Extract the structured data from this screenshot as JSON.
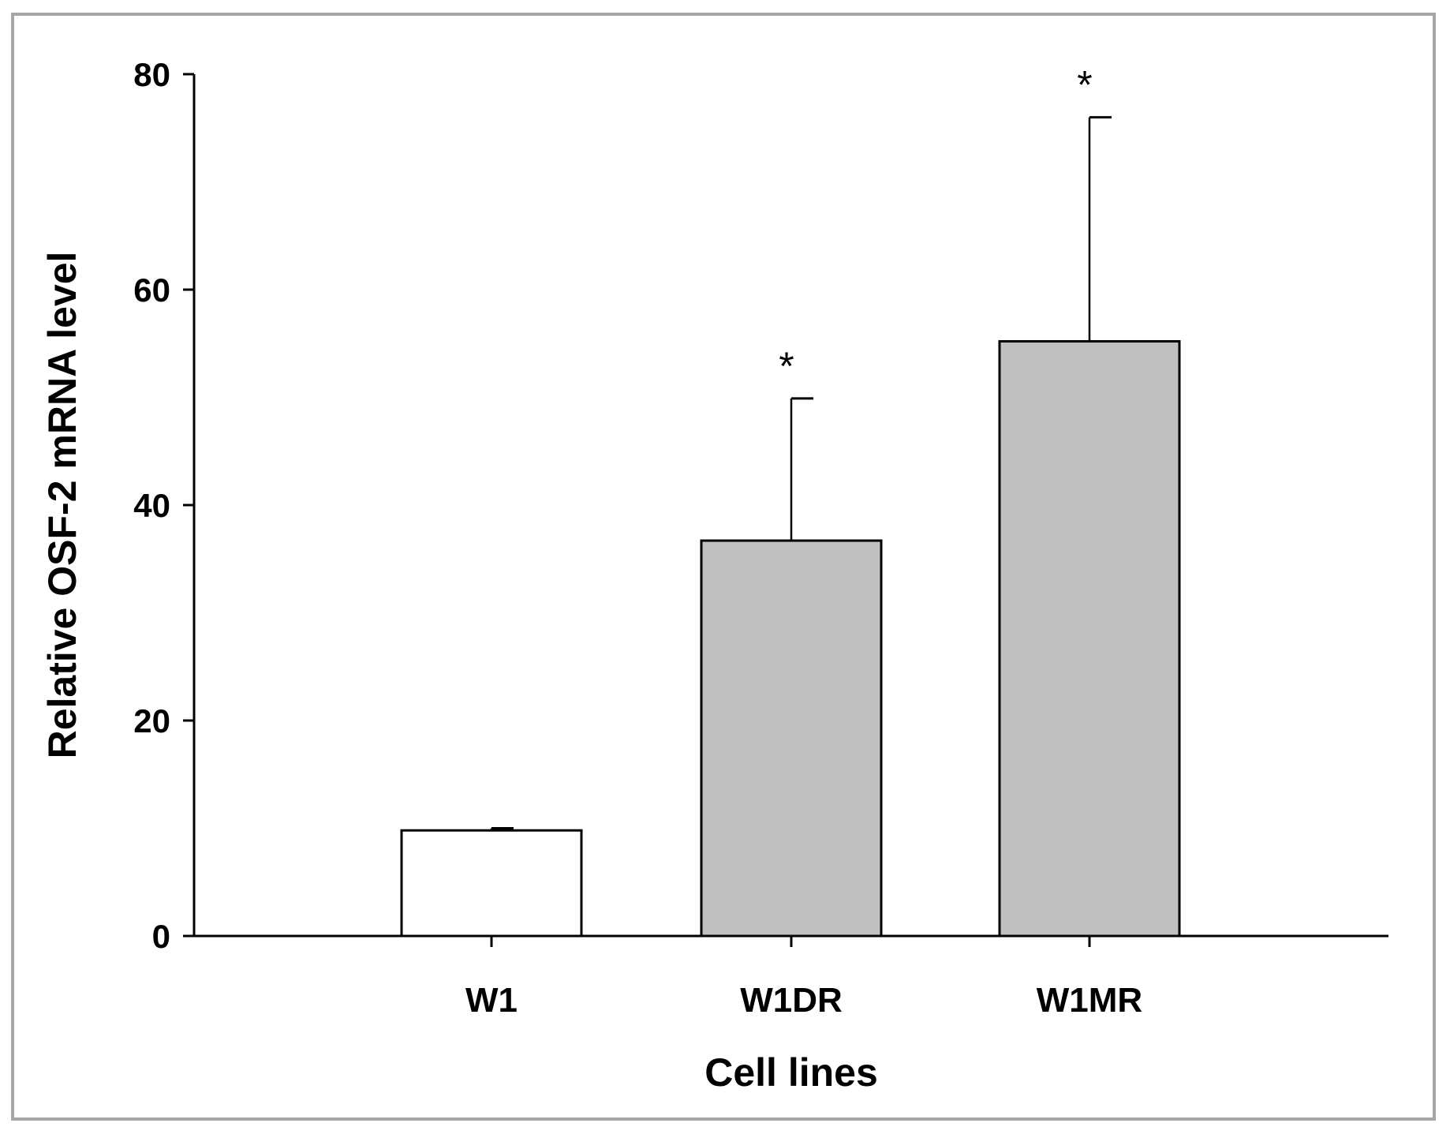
{
  "chart_data": {
    "type": "bar",
    "title": "",
    "xlabel": "Cell lines",
    "ylabel": "Relative OSF-2 mRNA level",
    "ylim": [
      0,
      80
    ],
    "yticks": [
      0,
      20,
      40,
      60,
      80
    ],
    "categories": [
      "W1",
      "W1DR",
      "W1MR"
    ],
    "values": [
      9.8,
      36.7,
      55.2
    ],
    "errors": [
      0.2,
      13.2,
      20.8
    ],
    "colors": [
      "#ffffff",
      "#c0c0c0",
      "#c0c0c0"
    ],
    "annotations": [
      "",
      "*",
      "*"
    ],
    "grid": false
  },
  "colors": {
    "frame_border": "#a6a6a6",
    "axis": "#000000",
    "bar_edge": "#000000"
  }
}
